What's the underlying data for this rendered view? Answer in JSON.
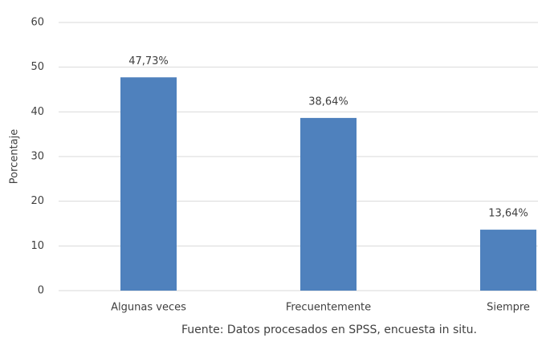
{
  "chart_data": {
    "type": "bar",
    "y_label": "Porcentaje",
    "categories": [
      "Algunas veces",
      "Frecuentemente",
      "Siempre"
    ],
    "values": [
      47.73,
      38.64,
      13.64
    ],
    "value_labels": [
      "47,73%",
      "38,64%",
      "13,64%"
    ],
    "color": "#4f81bd",
    "ylim": [
      0,
      60
    ],
    "yticks": [
      0,
      10,
      20,
      30,
      40,
      50,
      60
    ],
    "grid": true,
    "source": "Fuente: Datos procesados en SPSS, encuesta in situ."
  }
}
